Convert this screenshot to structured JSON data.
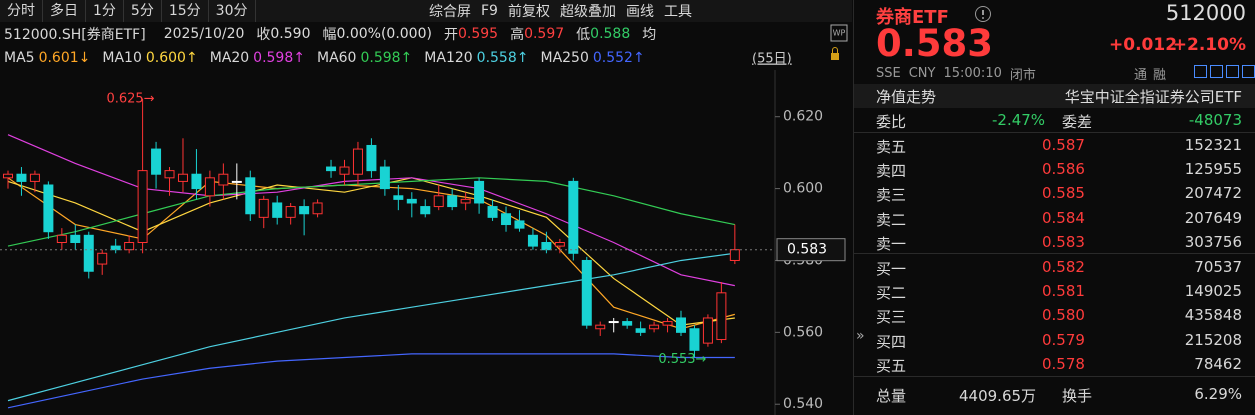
{
  "toolbar": {
    "periods": [
      "分时",
      "多日",
      "1分",
      "5分",
      "15分",
      "30分"
    ],
    "tools": [
      "综合屏",
      "F9",
      "前复权",
      "超级叠加",
      "画线",
      "工具"
    ]
  },
  "info_bar": {
    "symbol": "512000.SH[券商ETF]",
    "date": "2025/10/20",
    "items": [
      {
        "label": "收",
        "value": "0.590",
        "color": "#dddddd"
      },
      {
        "label": "幅",
        "value": "0.00%(0.000)",
        "color": "#dddddd"
      },
      {
        "label": "开",
        "value": "0.595",
        "color": "#ff4040"
      },
      {
        "label": "高",
        "value": "0.597",
        "color": "#ff4040"
      },
      {
        "label": "低",
        "value": "0.588",
        "color": "#33cc66"
      }
    ],
    "avg_label": "均"
  },
  "chart_data": {
    "type": "candlestick",
    "period_label": "(55日)",
    "up_color": "#ff3333",
    "down_color": "#19d3d3",
    "flat_color": "#ffffff",
    "ylim": [
      0.537,
      0.633
    ],
    "yticks": [
      {
        "value": 0.54,
        "label": "0.540"
      },
      {
        "value": 0.56,
        "label": "0.560"
      },
      {
        "value": 0.58,
        "label": "0.580"
      },
      {
        "value": 0.6,
        "label": "0.600"
      },
      {
        "value": 0.62,
        "label": "0.620"
      }
    ],
    "candles": [
      [
        0.603,
        0.605,
        0.6,
        0.604
      ],
      [
        0.604,
        0.606,
        0.598,
        0.602
      ],
      [
        0.602,
        0.605,
        0.599,
        0.604
      ],
      [
        0.601,
        0.602,
        0.586,
        0.588
      ],
      [
        0.585,
        0.589,
        0.583,
        0.587
      ],
      [
        0.587,
        0.59,
        0.583,
        0.585
      ],
      [
        0.587,
        0.588,
        0.575,
        0.577
      ],
      [
        0.579,
        0.583,
        0.576,
        0.582
      ],
      [
        0.584,
        0.586,
        0.582,
        0.583
      ],
      [
        0.583,
        0.587,
        0.582,
        0.585
      ],
      [
        0.585,
        0.625,
        0.582,
        0.605
      ],
      [
        0.611,
        0.613,
        0.6,
        0.604
      ],
      [
        0.603,
        0.606,
        0.598,
        0.605
      ],
      [
        0.602,
        0.614,
        0.599,
        0.604
      ],
      [
        0.604,
        0.611,
        0.597,
        0.6
      ],
      [
        0.598,
        0.605,
        0.595,
        0.603
      ],
      [
        0.601,
        0.607,
        0.597,
        0.604
      ],
      [
        0.602,
        0.607,
        0.597,
        0.602
      ],
      [
        0.603,
        0.605,
        0.591,
        0.593
      ],
      [
        0.592,
        0.598,
        0.589,
        0.597
      ],
      [
        0.596,
        0.598,
        0.59,
        0.592
      ],
      [
        0.592,
        0.596,
        0.59,
        0.595
      ],
      [
        0.595,
        0.597,
        0.587,
        0.593
      ],
      [
        0.593,
        0.597,
        0.592,
        0.596
      ],
      [
        0.606,
        0.608,
        0.603,
        0.605
      ],
      [
        0.604,
        0.608,
        0.601,
        0.606
      ],
      [
        0.604,
        0.613,
        0.601,
        0.611
      ],
      [
        0.612,
        0.614,
        0.603,
        0.605
      ],
      [
        0.606,
        0.608,
        0.598,
        0.6
      ],
      [
        0.598,
        0.601,
        0.594,
        0.597
      ],
      [
        0.597,
        0.599,
        0.592,
        0.596
      ],
      [
        0.595,
        0.597,
        0.592,
        0.593
      ],
      [
        0.595,
        0.601,
        0.594,
        0.598
      ],
      [
        0.598,
        0.6,
        0.594,
        0.595
      ],
      [
        0.596,
        0.599,
        0.594,
        0.597
      ],
      [
        0.602,
        0.603,
        0.593,
        0.596
      ],
      [
        0.595,
        0.597,
        0.591,
        0.592
      ],
      [
        0.593,
        0.595,
        0.588,
        0.59
      ],
      [
        0.591,
        0.594,
        0.588,
        0.589
      ],
      [
        0.587,
        0.589,
        0.583,
        0.584
      ],
      [
        0.585,
        0.588,
        0.582,
        0.583
      ],
      [
        0.584,
        0.586,
        0.582,
        0.585
      ],
      [
        0.602,
        0.603,
        0.58,
        0.582
      ],
      [
        0.58,
        0.581,
        0.561,
        0.562
      ],
      [
        0.561,
        0.563,
        0.559,
        0.562
      ],
      [
        0.563,
        0.564,
        0.56,
        0.563
      ],
      [
        0.563,
        0.564,
        0.561,
        0.562
      ],
      [
        0.561,
        0.563,
        0.559,
        0.56
      ],
      [
        0.561,
        0.563,
        0.56,
        0.562
      ],
      [
        0.562,
        0.564,
        0.56,
        0.563
      ],
      [
        0.564,
        0.566,
        0.559,
        0.56
      ],
      [
        0.561,
        0.562,
        0.553,
        0.555
      ],
      [
        0.557,
        0.565,
        0.556,
        0.564
      ],
      [
        0.558,
        0.574,
        0.557,
        0.571
      ],
      [
        0.58,
        0.59,
        0.579,
        0.583
      ]
    ],
    "ma_x": [
      0,
      5,
      10,
      15,
      20,
      25,
      30,
      35,
      40,
      45,
      50,
      54
    ],
    "series": [
      {
        "name": "MA5",
        "value_label": "0.601↓",
        "color": "#ffa726",
        "values": [
          0.603,
          0.59,
          0.586,
          0.602,
          0.6,
          0.601,
          0.6,
          0.597,
          0.587,
          0.567,
          0.561,
          0.565
        ]
      },
      {
        "name": "MA10",
        "value_label": "0.600↑",
        "color": "#ffd740",
        "values": [
          0.602,
          0.596,
          0.588,
          0.596,
          0.601,
          0.599,
          0.603,
          0.598,
          0.592,
          0.575,
          0.562,
          0.564
        ]
      },
      {
        "name": "MA20",
        "value_label": "0.598↑",
        "color": "#e040e0",
        "values": [
          0.615,
          0.607,
          0.6,
          0.598,
          0.599,
          0.602,
          0.603,
          0.6,
          0.593,
          0.585,
          0.576,
          0.573
        ]
      },
      {
        "name": "MA60",
        "value_label": "0.598↑",
        "color": "#33cc55",
        "values": [
          0.584,
          0.588,
          0.593,
          0.598,
          0.6,
          0.601,
          0.602,
          0.603,
          0.602,
          0.598,
          0.593,
          0.59
        ]
      },
      {
        "name": "MA120",
        "value_label": "0.558↑",
        "color": "#4dd0e1",
        "values": [
          0.541,
          0.546,
          0.551,
          0.556,
          0.56,
          0.564,
          0.567,
          0.57,
          0.573,
          0.576,
          0.58,
          0.582
        ]
      },
      {
        "name": "MA250",
        "value_label": "0.552↑",
        "color": "#4466ff",
        "values": [
          0.539,
          0.543,
          0.547,
          0.55,
          0.552,
          0.553,
          0.554,
          0.554,
          0.554,
          0.554,
          0.553,
          0.553
        ]
      }
    ],
    "last_price": {
      "value": 0.583,
      "label": "0.583"
    },
    "annotations": [
      {
        "index": 10,
        "value": 0.625,
        "label": "0.625→",
        "color": "#ff4040"
      },
      {
        "index": 51,
        "value": 0.553,
        "label": "0.553→",
        "color": "#33cc66"
      }
    ]
  },
  "quote": {
    "name": "券商ETF",
    "code": "512000",
    "price": "0.583",
    "change": "+0.012",
    "change_pct": "+2.10%",
    "meta": [
      "SSE",
      "CNY",
      "15:00:10",
      "闭市"
    ],
    "badges": [
      "通",
      "融"
    ]
  },
  "nav": {
    "label": "净值走势",
    "fund": "华宝中证全指证券公司ETF"
  },
  "ratio": {
    "label": "委比",
    "value": "-2.47%",
    "diff_label": "委差",
    "diff": "-48073"
  },
  "order_book": [
    {
      "level": "卖五",
      "price": "0.587",
      "volume": "152321"
    },
    {
      "level": "卖四",
      "price": "0.586",
      "volume": "125955"
    },
    {
      "level": "卖三",
      "price": "0.585",
      "volume": "207472"
    },
    {
      "level": "卖二",
      "price": "0.584",
      "volume": "207649"
    },
    {
      "level": "卖一",
      "price": "0.583",
      "volume": "303756"
    },
    {
      "level": "买一",
      "price": "0.582",
      "volume": "70537"
    },
    {
      "level": "买二",
      "price": "0.581",
      "volume": "149025"
    },
    {
      "level": "买三",
      "price": "0.580",
      "volume": "435848"
    },
    {
      "level": "买四",
      "price": "0.579",
      "volume": "215208"
    },
    {
      "level": "买五",
      "price": "0.578",
      "volume": "78462"
    }
  ],
  "summary": {
    "volume_label": "总量",
    "volume": "4409.65万",
    "turnover_label": "换手",
    "turnover": "6.29%"
  }
}
